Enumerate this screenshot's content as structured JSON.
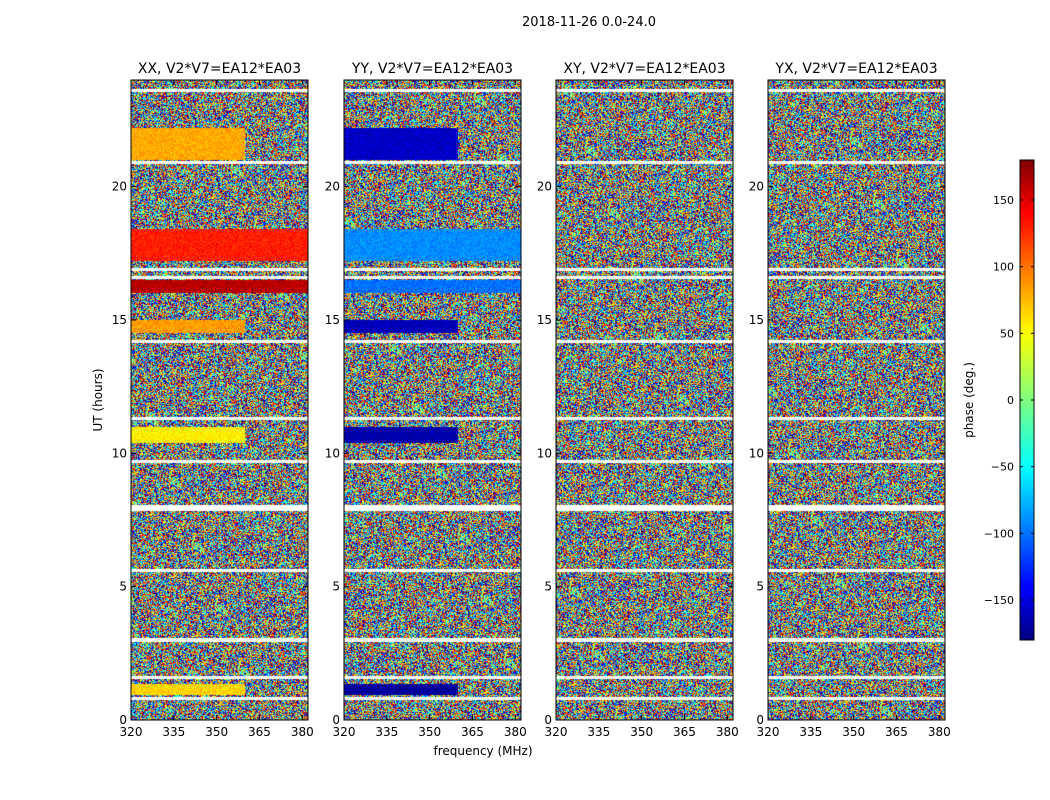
{
  "figure_title": "2018-11-26 0.0-24.0",
  "shared_xlabel": "frequency (MHz)",
  "shared_ylabel": "UT (hours)",
  "colorbar": {
    "label": "phase (deg.)",
    "range": [
      -180,
      180
    ],
    "ticks": [
      150,
      100,
      50,
      0,
      -50,
      -100,
      -150
    ],
    "tick_labels": [
      "150",
      "100",
      "50",
      "0",
      "−50",
      "−100",
      "−150"
    ],
    "colormap": "jet",
    "colors": [
      "#00007f",
      "#0000ff",
      "#00ffff",
      "#7fff7f",
      "#ffff00",
      "#ff0000",
      "#7f0000"
    ]
  },
  "chart_data": [
    {
      "type": "heatmap",
      "title": "XX, V2*V7=EA12*EA03",
      "xlabel": "frequency (MHz)",
      "ylabel": "UT (hours)",
      "xlim": [
        320,
        382
      ],
      "ylim": [
        0,
        24
      ],
      "xticks": [
        320,
        335,
        350,
        365,
        380
      ],
      "yticks": [
        0,
        5,
        10,
        15,
        20
      ],
      "zlim": [
        -180,
        180
      ],
      "zlabel": "phase (deg.)",
      "coherent_bands": [
        {
          "t0": 21.0,
          "t1": 22.2,
          "f_max": 360,
          "phase": 75
        },
        {
          "t0": 17.2,
          "t1": 18.4,
          "f_max": 382,
          "phase": 125
        },
        {
          "t0": 16.0,
          "t1": 16.5,
          "f_max": 382,
          "phase": 160
        },
        {
          "t0": 14.5,
          "t1": 15.0,
          "f_max": 360,
          "phase": 80
        },
        {
          "t0": 10.4,
          "t1": 11.0,
          "f_max": 360,
          "phase": 50
        },
        {
          "t0": 0.95,
          "t1": 1.35,
          "f_max": 360,
          "phase": 60
        }
      ],
      "gaps": [
        23.6,
        20.9,
        16.9,
        16.6,
        14.2,
        11.3,
        9.7,
        8.0,
        7.9,
        5.6,
        3.0,
        1.6,
        0.8
      ]
    },
    {
      "type": "heatmap",
      "title": "YY, V2*V7=EA12*EA03",
      "xlabel": "frequency (MHz)",
      "ylabel": "UT (hours)",
      "xlim": [
        320,
        382
      ],
      "ylim": [
        0,
        24
      ],
      "xticks": [
        320,
        335,
        350,
        365,
        380
      ],
      "yticks": [
        0,
        5,
        10,
        15,
        20
      ],
      "zlim": [
        -180,
        180
      ],
      "zlabel": "phase (deg.)",
      "coherent_bands": [
        {
          "t0": 21.0,
          "t1": 22.2,
          "f_max": 360,
          "phase": -155
        },
        {
          "t0": 17.2,
          "t1": 18.4,
          "f_max": 382,
          "phase": -85
        },
        {
          "t0": 16.0,
          "t1": 16.5,
          "f_max": 382,
          "phase": -95
        },
        {
          "t0": 14.5,
          "t1": 15.0,
          "f_max": 360,
          "phase": -160
        },
        {
          "t0": 10.4,
          "t1": 11.0,
          "f_max": 360,
          "phase": -165
        },
        {
          "t0": 0.95,
          "t1": 1.35,
          "f_max": 360,
          "phase": -170
        }
      ],
      "gaps": [
        23.6,
        20.9,
        16.9,
        16.6,
        14.2,
        11.3,
        9.7,
        8.0,
        7.9,
        5.6,
        3.0,
        1.6,
        0.8
      ]
    },
    {
      "type": "heatmap",
      "title": "XY, V2*V7=EA12*EA03",
      "xlabel": "frequency (MHz)",
      "ylabel": "UT (hours)",
      "xlim": [
        320,
        382
      ],
      "ylim": [
        0,
        24
      ],
      "xticks": [
        320,
        335,
        350,
        365,
        380
      ],
      "yticks": [
        0,
        5,
        10,
        15,
        20
      ],
      "zlim": [
        -180,
        180
      ],
      "zlabel": "phase (deg.)",
      "coherent_bands": [],
      "gaps": [
        23.6,
        20.9,
        16.9,
        16.6,
        14.2,
        11.3,
        9.7,
        8.0,
        7.9,
        5.6,
        3.0,
        1.6,
        0.8
      ]
    },
    {
      "type": "heatmap",
      "title": "YX, V2*V7=EA12*EA03",
      "xlabel": "frequency (MHz)",
      "ylabel": "UT (hours)",
      "xlim": [
        320,
        382
      ],
      "ylim": [
        0,
        24
      ],
      "xticks": [
        320,
        335,
        350,
        365,
        380
      ],
      "yticks": [
        0,
        5,
        10,
        15,
        20
      ],
      "zlim": [
        -180,
        180
      ],
      "zlabel": "phase (deg.)",
      "coherent_bands": [],
      "gaps": [
        23.6,
        20.9,
        16.9,
        16.6,
        14.2,
        11.3,
        9.7,
        8.0,
        7.9,
        5.6,
        3.0,
        1.6,
        0.8
      ]
    }
  ]
}
